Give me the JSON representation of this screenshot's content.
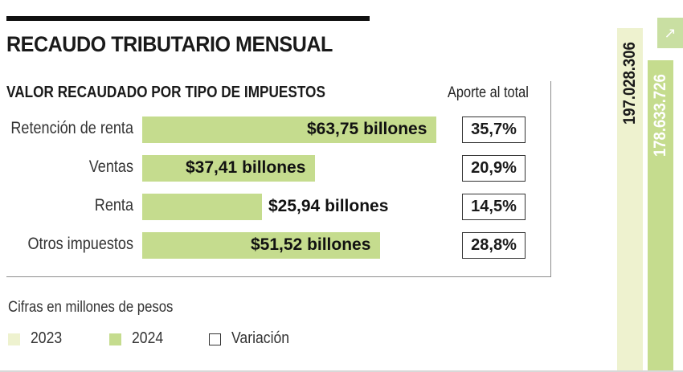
{
  "title": "RECAUDO TRIBUTARIO MENSUAL",
  "panel_title": "VALOR RECAUDADO POR TIPO DE IMPUESTOS",
  "share_header": "Aporte al total",
  "footnote": "Cifras en millones de pesos",
  "legend": [
    {
      "label": "2023",
      "color": "#eef2cf"
    },
    {
      "label": "2024",
      "color": "#c5dc8e"
    },
    {
      "label": "Variación",
      "color": "#ffffff"
    }
  ],
  "totals": [
    {
      "year": "2023",
      "label": "197.028.306",
      "value": 197028306,
      "color": "#eef2cf"
    },
    {
      "year": "2024",
      "label": "178.633.726",
      "value": 178633726,
      "color": "#c5dc8e"
    }
  ],
  "corner_icon": "expand-arrow-icon",
  "corner_glyph": "↗",
  "chart_data": {
    "type": "bar",
    "orientation": "horizontal",
    "title": "VALOR RECAUDADO POR TIPO DE IMPUESTOS",
    "categories": [
      "Retención de renta",
      "Ventas",
      "Renta",
      "Otros impuestos"
    ],
    "values": [
      63.75,
      37.41,
      25.94,
      51.52
    ],
    "value_labels": [
      "$63,75 billones",
      "$37,41 billones",
      "$25,94 billones",
      "$51,52 billones"
    ],
    "shares": [
      "35,7%",
      "20,9%",
      "14,5%",
      "28,8%"
    ],
    "unit": "billones",
    "xlim": [
      0,
      63.75
    ]
  }
}
